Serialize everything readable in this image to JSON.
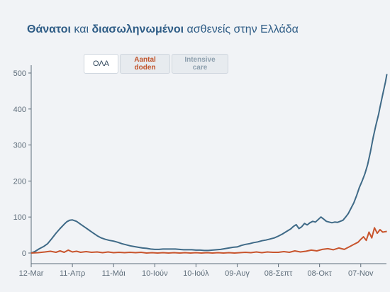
{
  "title": {
    "part1": "Θάνατοι",
    "part2": " και ",
    "part3": "διασωληνωμένοι",
    "part4": " ασθενείς στην Ελλάδα"
  },
  "controls": {
    "all": "ΟΛΑ",
    "deaths": "Aantal doden",
    "icu": "Intensive care"
  },
  "chart_data": {
    "type": "line",
    "ylim": [
      0,
      500
    ],
    "yticks": [
      0,
      100,
      200,
      300,
      400,
      500
    ],
    "xticks": [
      {
        "label": "12-Mar",
        "day": 0
      },
      {
        "label": "11-Απρ",
        "day": 30
      },
      {
        "label": "11-Μάι",
        "day": 60
      },
      {
        "label": "10-Ιούν",
        "day": 90
      },
      {
        "label": "10-Ιούλ",
        "day": 120
      },
      {
        "label": "09-Αυγ",
        "day": 150
      },
      {
        "label": "08-Σεπτ",
        "day": 180
      },
      {
        "label": "08-Οκτ",
        "day": 210
      },
      {
        "label": "07-Nov",
        "day": 240
      }
    ],
    "xlim": [
      0,
      252
    ],
    "series": [
      {
        "name": "Intensive care",
        "color": "#3f6a87",
        "points": [
          [
            0,
            0
          ],
          [
            3,
            5
          ],
          [
            6,
            12
          ],
          [
            9,
            18
          ],
          [
            12,
            26
          ],
          [
            15,
            40
          ],
          [
            18,
            55
          ],
          [
            21,
            68
          ],
          [
            24,
            80
          ],
          [
            26,
            87
          ],
          [
            28,
            91
          ],
          [
            30,
            92
          ],
          [
            33,
            88
          ],
          [
            36,
            80
          ],
          [
            39,
            72
          ],
          [
            42,
            64
          ],
          [
            45,
            56
          ],
          [
            48,
            48
          ],
          [
            51,
            42
          ],
          [
            54,
            38
          ],
          [
            57,
            35
          ],
          [
            60,
            33
          ],
          [
            63,
            30
          ],
          [
            66,
            26
          ],
          [
            69,
            23
          ],
          [
            72,
            20
          ],
          [
            75,
            18
          ],
          [
            78,
            16
          ],
          [
            81,
            14
          ],
          [
            84,
            13
          ],
          [
            87,
            11
          ],
          [
            90,
            10
          ],
          [
            93,
            10
          ],
          [
            96,
            11
          ],
          [
            99,
            11
          ],
          [
            102,
            11
          ],
          [
            105,
            11
          ],
          [
            108,
            10
          ],
          [
            111,
            9
          ],
          [
            114,
            9
          ],
          [
            117,
            9
          ],
          [
            120,
            8
          ],
          [
            123,
            8
          ],
          [
            126,
            7
          ],
          [
            129,
            7
          ],
          [
            132,
            8
          ],
          [
            135,
            9
          ],
          [
            138,
            10
          ],
          [
            141,
            12
          ],
          [
            144,
            14
          ],
          [
            147,
            16
          ],
          [
            150,
            17
          ],
          [
            153,
            21
          ],
          [
            156,
            24
          ],
          [
            159,
            26
          ],
          [
            162,
            29
          ],
          [
            165,
            31
          ],
          [
            168,
            34
          ],
          [
            171,
            36
          ],
          [
            174,
            39
          ],
          [
            177,
            42
          ],
          [
            180,
            47
          ],
          [
            183,
            53
          ],
          [
            186,
            60
          ],
          [
            189,
            67
          ],
          [
            191,
            74
          ],
          [
            193,
            79
          ],
          [
            195,
            68
          ],
          [
            197,
            73
          ],
          [
            199,
            82
          ],
          [
            201,
            78
          ],
          [
            203,
            84
          ],
          [
            205,
            88
          ],
          [
            207,
            86
          ],
          [
            209,
            93
          ],
          [
            211,
            100
          ],
          [
            213,
            94
          ],
          [
            215,
            88
          ],
          [
            217,
            86
          ],
          [
            219,
            84
          ],
          [
            221,
            86
          ],
          [
            223,
            85
          ],
          [
            225,
            88
          ],
          [
            227,
            91
          ],
          [
            229,
            100
          ],
          [
            231,
            110
          ],
          [
            233,
            125
          ],
          [
            235,
            140
          ],
          [
            237,
            160
          ],
          [
            239,
            182
          ],
          [
            241,
            200
          ],
          [
            243,
            220
          ],
          [
            245,
            245
          ],
          [
            247,
            280
          ],
          [
            249,
            320
          ],
          [
            251,
            355
          ],
          [
            253,
            385
          ],
          [
            254,
            405
          ],
          [
            256,
            440
          ],
          [
            258,
            475
          ],
          [
            259,
            497
          ]
        ]
      },
      {
        "name": "Aantal doden",
        "color": "#c8552e",
        "points": [
          [
            0,
            0
          ],
          [
            5,
            1
          ],
          [
            10,
            3
          ],
          [
            14,
            5
          ],
          [
            18,
            2
          ],
          [
            21,
            6
          ],
          [
            24,
            2
          ],
          [
            27,
            8
          ],
          [
            30,
            3
          ],
          [
            33,
            5
          ],
          [
            36,
            2
          ],
          [
            40,
            4
          ],
          [
            44,
            2
          ],
          [
            48,
            3
          ],
          [
            52,
            1
          ],
          [
            56,
            3
          ],
          [
            60,
            1
          ],
          [
            64,
            2
          ],
          [
            68,
            1
          ],
          [
            72,
            2
          ],
          [
            76,
            1
          ],
          [
            80,
            2
          ],
          [
            84,
            0
          ],
          [
            88,
            1
          ],
          [
            92,
            0
          ],
          [
            96,
            1
          ],
          [
            100,
            0
          ],
          [
            104,
            1
          ],
          [
            108,
            0
          ],
          [
            112,
            1
          ],
          [
            116,
            0
          ],
          [
            120,
            1
          ],
          [
            124,
            0
          ],
          [
            128,
            1
          ],
          [
            132,
            0
          ],
          [
            136,
            1
          ],
          [
            140,
            0
          ],
          [
            144,
            1
          ],
          [
            148,
            0
          ],
          [
            152,
            1
          ],
          [
            156,
            2
          ],
          [
            160,
            1
          ],
          [
            164,
            3
          ],
          [
            168,
            1
          ],
          [
            172,
            3
          ],
          [
            176,
            2
          ],
          [
            180,
            2
          ],
          [
            184,
            4
          ],
          [
            188,
            2
          ],
          [
            192,
            6
          ],
          [
            196,
            3
          ],
          [
            200,
            5
          ],
          [
            204,
            8
          ],
          [
            208,
            6
          ],
          [
            212,
            10
          ],
          [
            216,
            12
          ],
          [
            220,
            9
          ],
          [
            224,
            14
          ],
          [
            228,
            10
          ],
          [
            232,
            18
          ],
          [
            235,
            24
          ],
          [
            238,
            30
          ],
          [
            240,
            38
          ],
          [
            242,
            45
          ],
          [
            244,
            35
          ],
          [
            246,
            58
          ],
          [
            248,
            42
          ],
          [
            250,
            70
          ],
          [
            252,
            55
          ],
          [
            254,
            65
          ],
          [
            256,
            58
          ],
          [
            259,
            60
          ]
        ]
      }
    ]
  }
}
